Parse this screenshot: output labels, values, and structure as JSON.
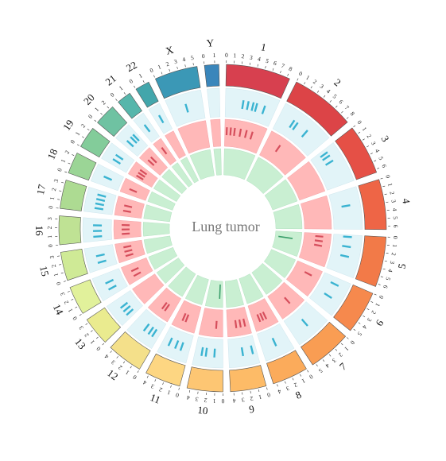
{
  "center_label": "Lung tumor",
  "chart_data": {
    "type": "circos",
    "tracks": [
      "ideogram",
      "snv",
      "cnv",
      "sv"
    ],
    "track_colors": {
      "snv_bg": "#e2f4f8",
      "snv_mark": "#3ab3d1",
      "cnv_bg": "#ffb8b8",
      "cnv_mark": "#d64e5c",
      "sv_bg": "#c9efd2",
      "sv_mark": "#3a9e6a"
    },
    "chromosomes": [
      {
        "name": "1",
        "ticks": 9,
        "color": "#d7404f",
        "snv": [
          0.35,
          0.45,
          0.55,
          0.62,
          0.78
        ],
        "cnv": [
          0.05,
          0.15,
          0.25,
          0.4,
          0.55,
          0.7
        ],
        "sv": []
      },
      {
        "name": "2",
        "ticks": 9,
        "color": "#dc4447",
        "snv": [
          0.3,
          0.38,
          0.62
        ],
        "cnv": [
          0.35
        ],
        "sv": []
      },
      {
        "name": "3",
        "ticks": 7,
        "color": "#e55046",
        "snv": [
          0.1,
          0.2,
          0.35
        ],
        "cnv": [],
        "sv": []
      },
      {
        "name": "4",
        "ticks": 7,
        "color": "#ee6546",
        "snv": [
          0.4
        ],
        "cnv": [],
        "sv": []
      },
      {
        "name": "5",
        "ticks": 7,
        "color": "#f27a48",
        "snv": [
          0.05,
          0.3,
          0.55
        ],
        "cnv": [
          0.1,
          0.25,
          0.4
        ],
        "sv": [
          0.3
        ]
      },
      {
        "name": "6",
        "ticks": 6,
        "color": "#f6894d",
        "snv": [
          0.2,
          0.6
        ],
        "cnv": [
          0.3
        ],
        "sv": []
      },
      {
        "name": "7",
        "ticks": 6,
        "color": "#f99d53",
        "snv": [
          0.5
        ],
        "cnv": [
          0.45
        ],
        "sv": []
      },
      {
        "name": "8",
        "ticks": 5,
        "color": "#fbab5b",
        "snv": [
          0.5
        ],
        "cnv": [
          0.4,
          0.55,
          0.7
        ],
        "sv": []
      },
      {
        "name": "9",
        "ticks": 5,
        "color": "#fdbb67",
        "snv": [
          0.15,
          0.5
        ],
        "cnv": [
          0.2,
          0.4,
          0.6
        ],
        "sv": []
      },
      {
        "name": "10",
        "ticks": 5,
        "color": "#fdc673",
        "snv": [
          0.3,
          0.6,
          0.75
        ],
        "cnv": [
          0.3
        ],
        "sv": [
          0.2
        ]
      },
      {
        "name": "11",
        "ticks": 5,
        "color": "#fdd682",
        "snv": [
          0.3,
          0.5,
          0.75
        ],
        "cnv": [
          0.5,
          0.65
        ],
        "sv": []
      },
      {
        "name": "12",
        "ticks": 5,
        "color": "#f4e08a",
        "snv": [
          0.2,
          0.35,
          0.55
        ],
        "cnv": [
          0.35,
          0.5
        ],
        "sv": []
      },
      {
        "name": "13",
        "ticks": 4,
        "color": "#eaeb8f",
        "snv": [
          0.2,
          0.4,
          0.6
        ],
        "cnv": [],
        "sv": []
      },
      {
        "name": "14",
        "ticks": 4,
        "color": "#e1f19b",
        "snv": [
          0.3,
          0.6
        ],
        "cnv": [
          0.3,
          0.6
        ],
        "sv": []
      },
      {
        "name": "15",
        "ticks": 4,
        "color": "#cfea96",
        "snv": [
          0.3,
          0.6
        ],
        "cnv": [
          0.25,
          0.5,
          0.75
        ],
        "sv": []
      },
      {
        "name": "16",
        "ticks": 4,
        "color": "#bfe294",
        "snv": [
          0.2,
          0.45,
          0.7
        ],
        "cnv": [
          0.25,
          0.5,
          0.75
        ],
        "sv": []
      },
      {
        "name": "17",
        "ticks": 4,
        "color": "#addb92",
        "snv": [
          0.2,
          0.4,
          0.6,
          0.8
        ],
        "cnv": [
          0.3,
          0.6
        ],
        "sv": []
      },
      {
        "name": "18",
        "ticks": 3,
        "color": "#9bd596",
        "snv": [
          0.5
        ],
        "cnv": [
          0.4
        ],
        "sv": []
      },
      {
        "name": "19",
        "ticks": 3,
        "color": "#83cc9a",
        "snv": [
          0.3,
          0.6
        ],
        "cnv": [
          0.2,
          0.45,
          0.7
        ],
        "sv": []
      },
      {
        "name": "20",
        "ticks": 3,
        "color": "#6fc2a2",
        "snv": [
          0.3,
          0.6,
          0.8
        ],
        "cnv": [
          0.3,
          0.6
        ],
        "sv": []
      },
      {
        "name": "21",
        "ticks": 2,
        "color": "#56b6ab",
        "snv": [
          0.5
        ],
        "cnv": [
          0.5
        ],
        "sv": []
      },
      {
        "name": "22",
        "ticks": 2,
        "color": "#43a6ab",
        "snv": [
          0.5
        ],
        "cnv": [],
        "sv": []
      },
      {
        "name": "X",
        "ticks": 6,
        "color": "#3b98b6",
        "snv": [
          0.5
        ],
        "cnv": [],
        "sv": []
      },
      {
        "name": "Y",
        "ticks": 2,
        "color": "#3a86bb",
        "snv": [],
        "cnv": [],
        "sv": []
      }
    ]
  }
}
